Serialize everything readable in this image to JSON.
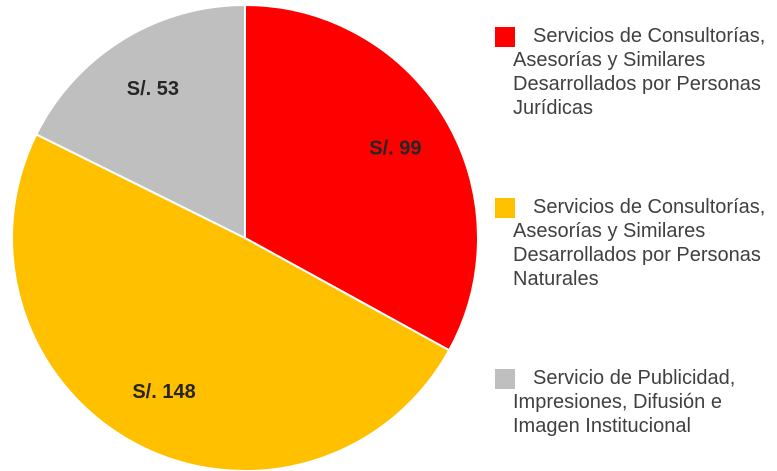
{
  "chart_data": {
    "type": "pie",
    "categories": [
      "Servicios de Consultorías, Asesorías y Similares Desarrollados por Personas Jurídicas",
      "Servicios de Consultorías, Asesorías y Similares Desarrollados por Personas Naturales",
      "Servicio de Publicidad, Impresiones, Difusión e Imagen Institucional"
    ],
    "values": [
      99,
      148,
      53
    ],
    "value_labels": [
      "S/. 99",
      "S/. 148",
      "S/. 53"
    ],
    "colors": [
      "#ff0000",
      "#ffc000",
      "#bfbfbf"
    ],
    "legend": "right"
  }
}
